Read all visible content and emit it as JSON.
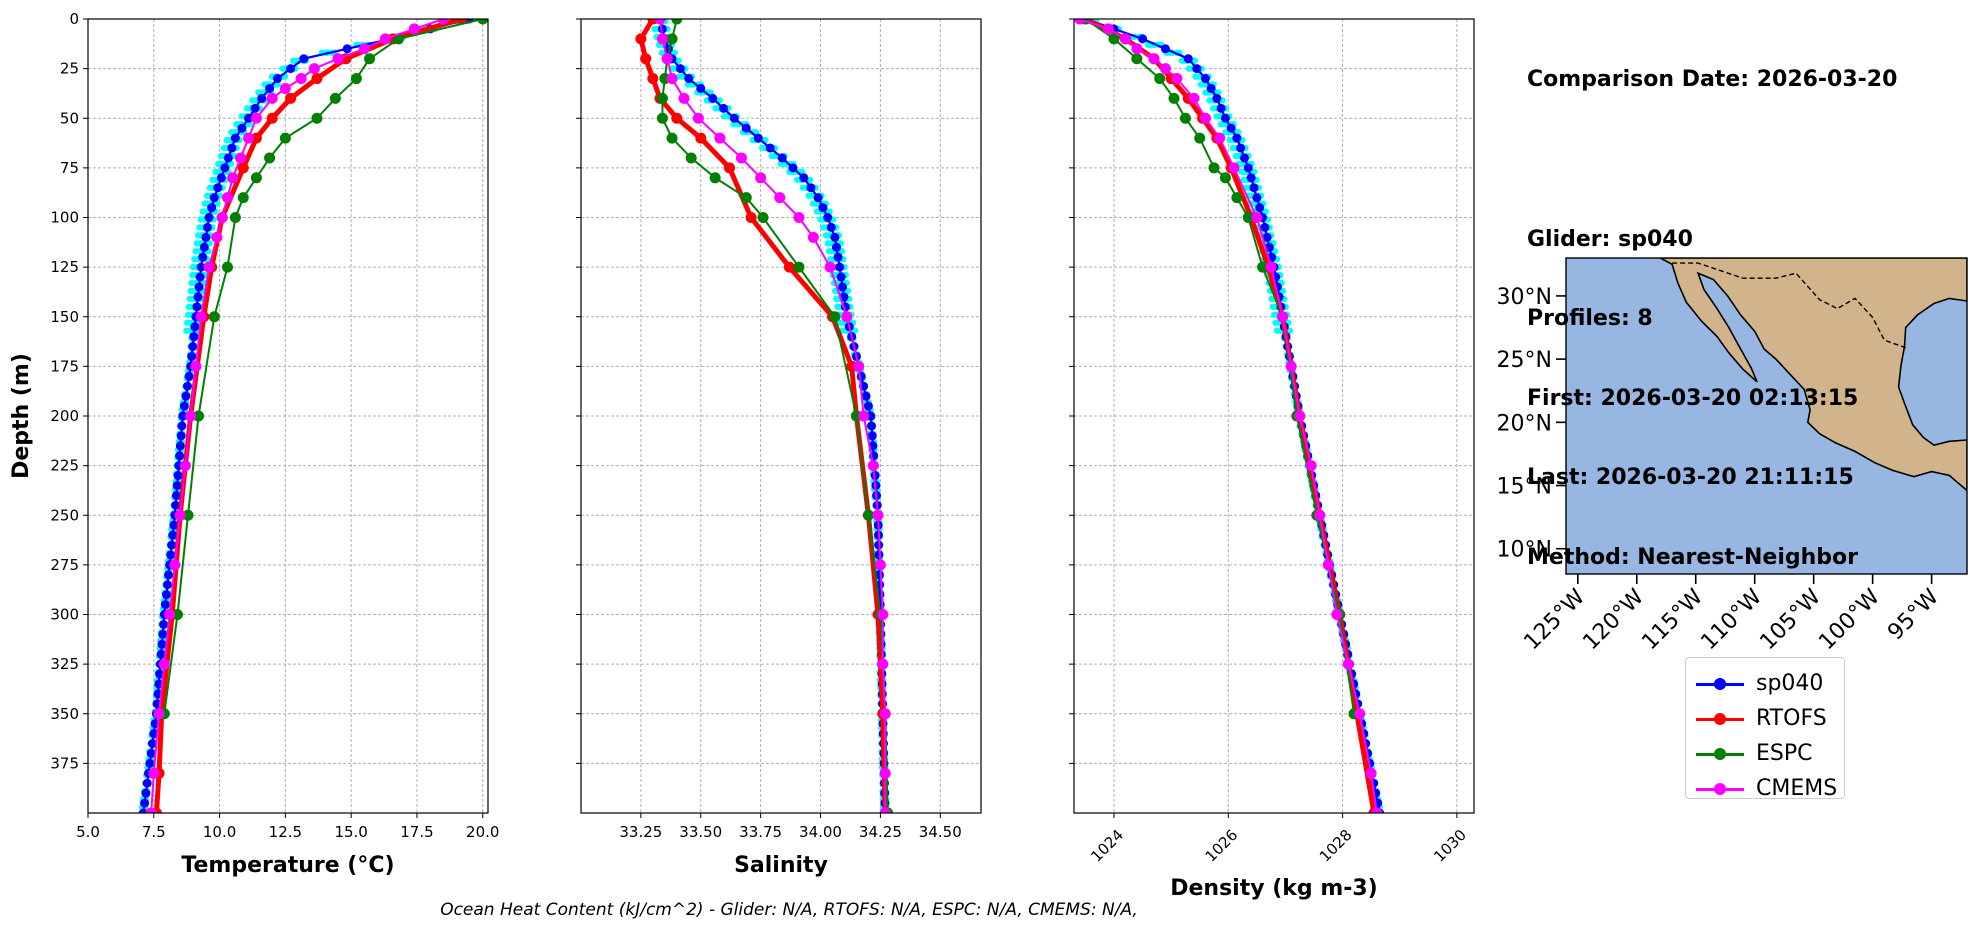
{
  "chart_data": [
    {
      "type": "line",
      "xlabel": "Temperature (°C)",
      "ylabel": "Depth (m)",
      "xlim": [
        5.0,
        20.2
      ],
      "ylim": [
        400,
        0
      ],
      "xticks": [
        "5.0",
        "7.5",
        "10.0",
        "12.5",
        "15.0",
        "17.5",
        "20.0"
      ],
      "yticks": [
        "0",
        "25",
        "50",
        "75",
        "100",
        "125",
        "150",
        "175",
        "200",
        "225",
        "250",
        "275",
        "300",
        "325",
        "350",
        "375"
      ],
      "grid": true,
      "series": [
        {
          "name": "sp040",
          "color": "#0000ff",
          "depth": [
            0,
            10,
            20,
            30,
            40,
            50,
            60,
            75,
            90,
            100,
            125,
            150,
            175,
            200,
            250,
            300,
            350,
            400
          ],
          "values": [
            19.5,
            16.5,
            13.2,
            12.2,
            11.6,
            11.1,
            10.6,
            10.2,
            9.8,
            9.6,
            9.3,
            9.1,
            8.9,
            8.6,
            8.3,
            7.9,
            7.6,
            7.1
          ]
        },
        {
          "name": "RTOFS",
          "color": "#ff0000",
          "depth": [
            0,
            10,
            20,
            30,
            40,
            50,
            60,
            75,
            100,
            125,
            150,
            200,
            250,
            300,
            350,
            380,
            400
          ],
          "values": [
            19.2,
            16.6,
            14.8,
            13.7,
            12.7,
            12.0,
            11.4,
            10.9,
            10.1,
            9.7,
            9.4,
            8.9,
            8.5,
            8.2,
            7.8,
            7.7,
            7.6
          ]
        },
        {
          "name": "ESPC",
          "color": "#008000",
          "depth": [
            0,
            10,
            20,
            30,
            40,
            50,
            60,
            70,
            80,
            90,
            100,
            125,
            150,
            200,
            250,
            300,
            350
          ],
          "values": [
            20.0,
            16.8,
            15.7,
            15.2,
            14.4,
            13.7,
            12.5,
            11.9,
            11.4,
            10.9,
            10.6,
            10.3,
            9.8,
            9.2,
            8.8,
            8.4,
            7.9
          ]
        },
        {
          "name": "CMEMS",
          "color": "#ff00ff",
          "depth": [
            0,
            5,
            10,
            15,
            20,
            25,
            30,
            35,
            40,
            50,
            60,
            70,
            80,
            90,
            100,
            110,
            125,
            150,
            175,
            200,
            225,
            250,
            275,
            300,
            325,
            350,
            380,
            400
          ],
          "values": [
            18.5,
            17.4,
            16.3,
            15.5,
            14.5,
            13.6,
            13.1,
            12.5,
            12.0,
            11.4,
            11.1,
            10.8,
            10.5,
            10.3,
            10.1,
            9.9,
            9.6,
            9.3,
            9.1,
            8.9,
            8.7,
            8.5,
            8.3,
            8.1,
            7.9,
            7.7,
            7.5,
            7.4
          ]
        }
      ]
    },
    {
      "type": "line",
      "xlabel": "Salinity",
      "ylabel": "",
      "xlim": [
        33.0,
        34.67
      ],
      "ylim": [
        400,
        0
      ],
      "xticks": [
        "33.25",
        "33.50",
        "33.75",
        "34.00",
        "34.25",
        "34.50"
      ],
      "grid": true,
      "series": [
        {
          "name": "sp040",
          "color": "#0000ff",
          "depth": [
            0,
            10,
            20,
            30,
            40,
            50,
            60,
            70,
            80,
            90,
            100,
            110,
            125,
            150,
            175,
            200,
            250,
            300,
            350,
            400
          ],
          "values": [
            33.33,
            33.35,
            33.38,
            33.45,
            33.55,
            33.64,
            33.74,
            33.84,
            33.93,
            33.99,
            34.03,
            34.06,
            34.08,
            34.11,
            34.16,
            34.21,
            34.24,
            34.25,
            34.26,
            34.27
          ]
        },
        {
          "name": "RTOFS",
          "color": "#ff0000",
          "depth": [
            0,
            10,
            20,
            30,
            40,
            50,
            60,
            75,
            100,
            125,
            150,
            175,
            200,
            250,
            300,
            350,
            400
          ],
          "values": [
            33.3,
            33.25,
            33.27,
            33.3,
            33.33,
            33.4,
            33.5,
            33.62,
            33.71,
            33.87,
            34.05,
            34.13,
            34.15,
            34.2,
            34.24,
            34.26,
            34.27
          ]
        },
        {
          "name": "ESPC",
          "color": "#008000",
          "depth": [
            0,
            10,
            20,
            30,
            40,
            50,
            60,
            70,
            80,
            90,
            100,
            125,
            150,
            200,
            250,
            300,
            350,
            400
          ],
          "values": [
            33.4,
            33.38,
            33.36,
            33.35,
            33.34,
            33.34,
            33.38,
            33.46,
            33.56,
            33.69,
            33.76,
            33.91,
            34.06,
            34.15,
            34.2,
            34.25,
            34.27,
            34.28
          ]
        },
        {
          "name": "CMEMS",
          "color": "#ff00ff",
          "depth": [
            0,
            10,
            20,
            30,
            40,
            50,
            60,
            70,
            80,
            90,
            100,
            110,
            125,
            150,
            175,
            200,
            225,
            250,
            275,
            300,
            325,
            350,
            380,
            400
          ],
          "values": [
            33.33,
            33.34,
            33.36,
            33.38,
            33.43,
            33.49,
            33.58,
            33.67,
            33.75,
            33.83,
            33.91,
            33.97,
            34.04,
            34.11,
            34.16,
            34.18,
            34.22,
            34.24,
            34.25,
            34.26,
            34.26,
            34.27,
            34.27,
            34.27
          ]
        }
      ]
    },
    {
      "type": "line",
      "xlabel": "Density (kg m-3)",
      "ylabel": "",
      "xlim": [
        1023.3,
        1030.3
      ],
      "ylim": [
        400,
        0
      ],
      "xticks": [
        "1024",
        "1026",
        "1028",
        "1030"
      ],
      "grid": true,
      "series": [
        {
          "name": "sp040",
          "color": "#0000ff",
          "depth": [
            0,
            10,
            20,
            30,
            40,
            50,
            60,
            75,
            100,
            125,
            150,
            200,
            250,
            300,
            350,
            400
          ],
          "values": [
            1023.5,
            1024.5,
            1025.3,
            1025.6,
            1025.8,
            1025.95,
            1026.15,
            1026.35,
            1026.6,
            1026.8,
            1026.95,
            1027.25,
            1027.6,
            1027.95,
            1028.3,
            1028.65
          ]
        },
        {
          "name": "RTOFS",
          "color": "#ff0000",
          "depth": [
            0,
            10,
            20,
            30,
            40,
            50,
            60,
            75,
            100,
            125,
            150,
            200,
            250,
            300,
            350,
            400
          ],
          "values": [
            1023.5,
            1024.2,
            1024.7,
            1025.0,
            1025.3,
            1025.55,
            1025.8,
            1026.05,
            1026.4,
            1026.7,
            1026.95,
            1027.25,
            1027.6,
            1027.95,
            1028.25,
            1028.55
          ]
        },
        {
          "name": "ESPC",
          "color": "#008000",
          "depth": [
            0,
            10,
            20,
            30,
            40,
            50,
            60,
            75,
            80,
            90,
            100,
            125,
            150,
            200,
            250,
            300,
            350
          ],
          "values": [
            1023.5,
            1024.0,
            1024.4,
            1024.8,
            1025.05,
            1025.25,
            1025.5,
            1025.75,
            1025.95,
            1026.15,
            1026.35,
            1026.6,
            1026.95,
            1027.2,
            1027.55,
            1027.95,
            1028.2
          ]
        },
        {
          "name": "CMEMS",
          "color": "#ff00ff",
          "depth": [
            0,
            5,
            10,
            15,
            20,
            25,
            30,
            40,
            50,
            60,
            75,
            100,
            125,
            150,
            175,
            200,
            225,
            250,
            275,
            300,
            325,
            350,
            380,
            400
          ],
          "values": [
            1023.4,
            1023.9,
            1024.2,
            1024.4,
            1024.7,
            1024.9,
            1025.1,
            1025.4,
            1025.6,
            1025.85,
            1026.1,
            1026.5,
            1026.75,
            1026.95,
            1027.1,
            1027.25,
            1027.45,
            1027.6,
            1027.75,
            1027.9,
            1028.1,
            1028.3,
            1028.5,
            1028.6
          ]
        }
      ]
    },
    {
      "type": "map",
      "lat_ticks": [
        "30°N",
        "25°N",
        "20°N",
        "15°N",
        "10°N"
      ],
      "lon_ticks": [
        "125°W",
        "120°W",
        "115°W",
        "110°W",
        "105°W",
        "100°W",
        "95°W"
      ],
      "lat_range": [
        8,
        33
      ],
      "lon_range": [
        -126,
        -92
      ],
      "ocean_color": "#97b6e1",
      "land_color": "#d2b48c"
    }
  ],
  "info": {
    "comparison": "Comparison Date: 2026-03-20",
    "glider": "Glider: sp040",
    "profiles": "Profiles: 8",
    "first": "First: 2026-03-20 02:13:15",
    "last": "Last: 2026-03-20 21:11:15",
    "method": "Method: Nearest-Neighbor"
  },
  "legend": [
    {
      "label": "sp040",
      "color": "#0000ff"
    },
    {
      "label": "RTOFS",
      "color": "#ff0000"
    },
    {
      "label": "ESPC",
      "color": "#008000"
    },
    {
      "label": "CMEMS",
      "color": "#ff00ff"
    }
  ],
  "ohc_text": "Ocean Heat Content (kJ/cm^2) - Glider: N/A,  RTOFS: N/A,  ESPC: N/A,  CMEMS: N/A,",
  "glider_individual_color": "#00ffff"
}
